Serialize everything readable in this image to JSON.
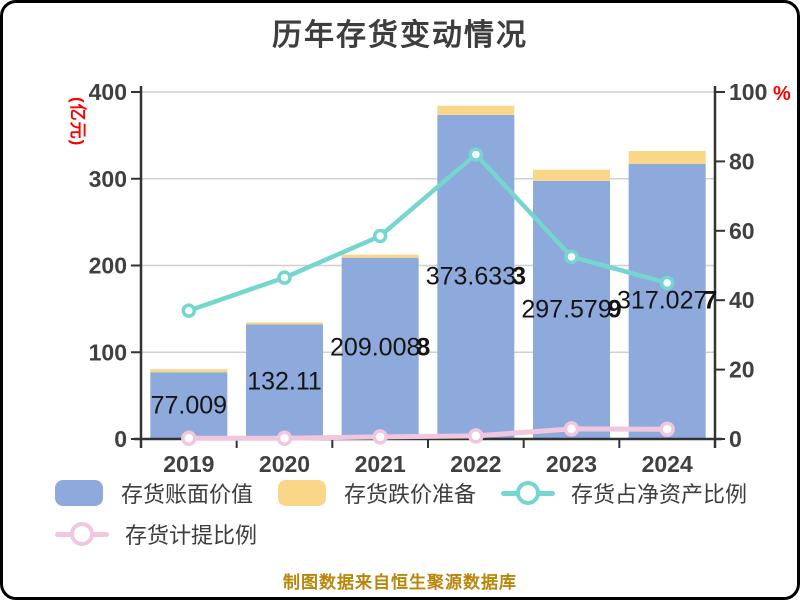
{
  "title": "历年存货变动情况",
  "source_note": "制图数据来自恒生聚源数据库",
  "axes": {
    "left": {
      "unit_label": "(亿元)",
      "ticks": [
        0,
        100,
        200,
        300,
        400
      ],
      "max": 400
    },
    "right": {
      "unit_label": "%",
      "ticks": [
        0,
        20,
        40,
        60,
        80,
        100
      ],
      "max": 100
    }
  },
  "chart_data": {
    "type": "bar",
    "categories": [
      "2019",
      "2020",
      "2021",
      "2022",
      "2023",
      "2024"
    ],
    "series": [
      {
        "name": "存货账面价值",
        "type": "bar",
        "axis": "left",
        "color": "#8EA9DB",
        "values": [
          77.009,
          132.11,
          209.008,
          373.633,
          297.579,
          317.027
        ],
        "data_labels": [
          "77.009",
          "132.11",
          "209.008",
          "373.633",
          "297.579",
          "317.027"
        ]
      },
      {
        "name": "存货跌价准备",
        "type": "bar",
        "stacked_on": "存货账面价值",
        "axis": "left",
        "color": "#FAD689",
        "values": [
          3.5,
          2.3,
          3.5,
          10.4,
          12.7,
          15.0
        ]
      },
      {
        "name": "存货占净资产比例",
        "type": "line",
        "axis": "right",
        "color": "#74D6CE",
        "values": [
          37,
          46.5,
          58.5,
          82,
          52.5,
          45
        ]
      },
      {
        "name": "存货计提比例",
        "type": "line",
        "axis": "right",
        "color": "#F1C7DF",
        "values": [
          0.2,
          0.2,
          0.6,
          0.9,
          2.9,
          2.8
        ]
      }
    ],
    "title": "历年存货变动情况",
    "xlabel": "",
    "ylabel_left": "(亿元)",
    "ylabel_right": "%",
    "ylim_left": [
      0,
      400
    ],
    "ylim_right": [
      0,
      100
    ],
    "grid": true,
    "legend_position": "bottom"
  },
  "legend": {
    "items": [
      {
        "label": "存货账面价值",
        "swatch": "bar",
        "color": "#8EA9DB"
      },
      {
        "label": "存货跌价准备",
        "swatch": "bar",
        "color": "#FAD689"
      },
      {
        "label": "存货占净资产比例",
        "swatch": "line",
        "color": "#74D6CE"
      },
      {
        "label": "存货计提比例",
        "swatch": "line",
        "color": "#F1C7DF"
      }
    ]
  },
  "colors": {
    "bar_book_value": "#8EA9DB",
    "bar_provision": "#FAD689",
    "line_net_asset_ratio": "#74D6CE",
    "line_provision_ratio": "#F1C7DF",
    "grid": "#D0D0D0",
    "axis": "#333333",
    "tick_text": "#404040",
    "title_text": "#3D3D3D",
    "bar_label_text": "#141414",
    "unit_text": "#FF0000",
    "footer_text": "#B8860B",
    "frame_border": "#000000"
  }
}
